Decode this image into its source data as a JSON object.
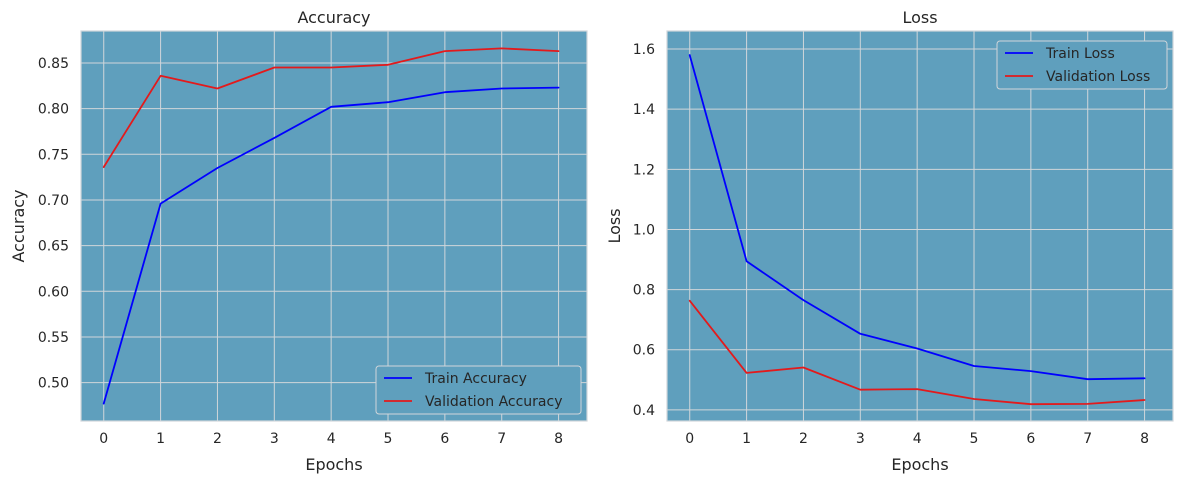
{
  "chart_data": [
    {
      "type": "line",
      "title": "Accuracy",
      "xlabel": "Epochs",
      "ylabel": "Accuracy",
      "x": [
        0,
        1,
        2,
        3,
        4,
        5,
        6,
        7,
        8
      ],
      "xlim": [
        -0.4,
        8.5
      ],
      "ylim": [
        0.458,
        0.885
      ],
      "xticks": [
        "0",
        "1",
        "2",
        "3",
        "4",
        "5",
        "6",
        "7",
        "8"
      ],
      "yticks": [
        "0.50",
        "0.55",
        "0.60",
        "0.65",
        "0.70",
        "0.75",
        "0.80",
        "0.85"
      ],
      "grid": true,
      "legend_position": "lower-right",
      "series": [
        {
          "name": "Train Accuracy",
          "color": "#0000ff",
          "values": [
            0.477,
            0.696,
            0.735,
            0.768,
            0.802,
            0.807,
            0.818,
            0.822,
            0.823
          ]
        },
        {
          "name": "Validation Accuracy",
          "color": "#e31a1c",
          "values": [
            0.736,
            0.836,
            0.822,
            0.845,
            0.845,
            0.848,
            0.863,
            0.866,
            0.863
          ]
        }
      ]
    },
    {
      "type": "line",
      "title": "Loss",
      "xlabel": "Epochs",
      "ylabel": "Loss",
      "x": [
        0,
        1,
        2,
        3,
        4,
        5,
        6,
        7,
        8
      ],
      "xlim": [
        -0.4,
        8.5
      ],
      "ylim": [
        0.363,
        1.66
      ],
      "xticks": [
        "0",
        "1",
        "2",
        "3",
        "4",
        "5",
        "6",
        "7",
        "8"
      ],
      "yticks": [
        "0.4",
        "0.6",
        "0.8",
        "1.0",
        "1.2",
        "1.4",
        "1.6"
      ],
      "grid": true,
      "legend_position": "upper-right",
      "series": [
        {
          "name": "Train Loss",
          "color": "#0000ff",
          "values": [
            1.58,
            0.894,
            0.765,
            0.653,
            0.604,
            0.546,
            0.529,
            0.502,
            0.505
          ]
        },
        {
          "name": "Validation Loss",
          "color": "#e31a1c",
          "values": [
            0.763,
            0.523,
            0.541,
            0.467,
            0.469,
            0.436,
            0.419,
            0.42,
            0.433
          ]
        }
      ]
    }
  ],
  "style": {
    "plot_background": "#5f9fbd",
    "grid_color": "#d0d6da",
    "legend_background": "#5f9fbd"
  }
}
